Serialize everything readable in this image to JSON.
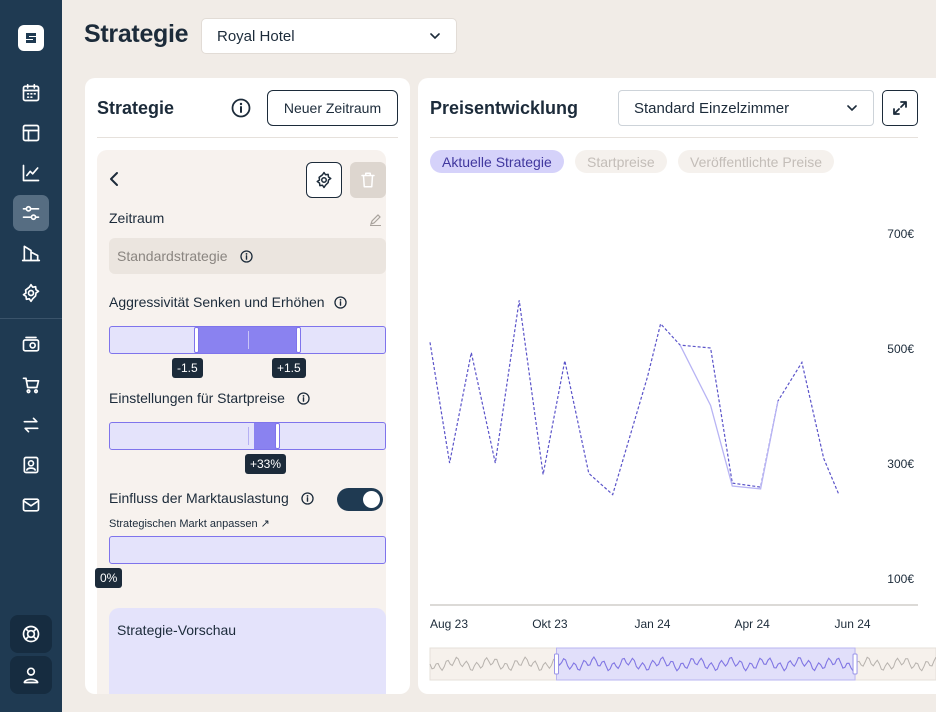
{
  "header": {
    "title": "Strategie",
    "hotel_select": "Royal Hotel"
  },
  "sidebar": {
    "items": [
      {
        "icon": "calendar-icon"
      },
      {
        "icon": "layout-icon"
      },
      {
        "icon": "chart-line-icon"
      },
      {
        "icon": "sliders-icon",
        "active": true
      },
      {
        "icon": "building-icon"
      },
      {
        "icon": "gear-icon"
      },
      {
        "icon": "ticket-icon"
      },
      {
        "icon": "cart-icon"
      },
      {
        "icon": "swap-icon"
      },
      {
        "icon": "contact-icon"
      },
      {
        "icon": "mail-icon"
      }
    ],
    "bottom": [
      {
        "icon": "lifebuoy-icon"
      },
      {
        "icon": "user-icon"
      }
    ]
  },
  "strategy_panel": {
    "title": "Strategie",
    "new_period_button": "Neuer Zeitraum",
    "zeitraum_label": "Zeitraum",
    "zeitraum_value": "Standardstrategie",
    "aggressiveness_label": "Aggressivität Senken und Erhöhen",
    "aggressiveness_low": "-1.5",
    "aggressiveness_high": "+1.5",
    "startprice_label": "Einstellungen für Startpreise",
    "startprice_value": "+33%",
    "market_label": "Einfluss der Marktauslastung",
    "market_toggle_on": true,
    "market_link": "Strategischen Markt anpassen ↗",
    "market_value": "0%",
    "preview_label": "Strategie-Vorschau"
  },
  "price_panel": {
    "title": "Preisentwicklung",
    "room_select": "Standard Einzelzimmer",
    "chips": [
      {
        "label": "Aktuelle Strategie",
        "active": true
      },
      {
        "label": "Startpreise",
        "active": false
      },
      {
        "label": "Veröffentlichte Preise",
        "active": false
      }
    ]
  },
  "colors": {
    "sidebar": "#1f3a52",
    "accent": "#7f74ec",
    "accent_light": "#e4e3fb",
    "line_dark": "#5b54c9",
    "line_light": "#b8b4f4"
  },
  "chart_data": {
    "type": "line",
    "x_ticks": [
      "Aug 23",
      "Okt 23",
      "Jan 24",
      "Apr 24",
      "Jun 24"
    ],
    "y_ticks": [
      "700€",
      "500€",
      "300€",
      "100€"
    ],
    "ylim": [
      100,
      700
    ],
    "series": [
      {
        "style": "dashed",
        "x": [
          0,
          0.045,
          0.095,
          0.15,
          0.205,
          0.26,
          0.31,
          0.365,
          0.42,
          0.5,
          0.53,
          0.575,
          0.645,
          0.695,
          0.76,
          0.8,
          0.855,
          0.905,
          0.94
        ],
        "values": [
          510,
          300,
          492,
          300,
          583,
          280,
          478,
          282,
          245,
          450,
          542,
          505,
          500,
          265,
          258,
          408,
          475,
          308,
          245
        ]
      },
      {
        "style": "solid",
        "x": [
          0.575,
          0.645,
          0.695,
          0.76,
          0.8
        ],
        "values": [
          505,
          400,
          260,
          255,
          408
        ]
      }
    ]
  },
  "navigator": {
    "range_start": 0.25,
    "range_end": 0.84
  }
}
